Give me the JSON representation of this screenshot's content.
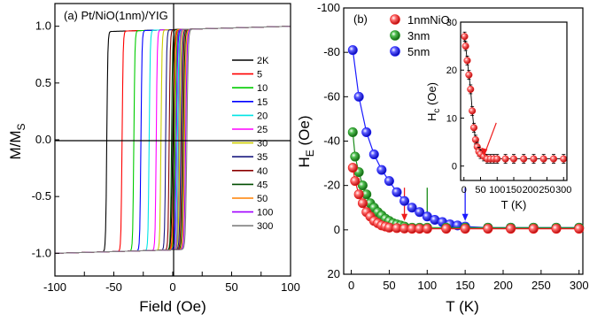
{
  "chart_data": [
    {
      "panel": "a",
      "type": "line",
      "title": "(a) Pt/NiO(1nm)/YIG",
      "xlabel": "Field (Oe)",
      "ylabel": "M/M",
      "ylabel_sub": "S",
      "xlim": [
        -100,
        100
      ],
      "ylim": [
        -1.2,
        1.2
      ],
      "xticks": [
        -100,
        -75,
        -50,
        -25,
        0,
        25,
        50,
        75,
        100
      ],
      "yticks": [
        -1.0,
        -0.5,
        0.0,
        0.5,
        1.0
      ],
      "ytick_labels": [
        "-1.0",
        "-0.5",
        "0.0",
        "0.5",
        "1.0"
      ],
      "series": [
        {
          "name": "2K",
          "color": "#000000",
          "hc_down": -56,
          "hc_up": 0
        },
        {
          "name": "5",
          "color": "#ff0000",
          "hc_down": -43,
          "hc_up": 1
        },
        {
          "name": "10",
          "color": "#00cc00",
          "hc_down": -33,
          "hc_up": 2
        },
        {
          "name": "15",
          "color": "#0000ff",
          "hc_down": -27,
          "hc_up": 3
        },
        {
          "name": "20",
          "color": "#00e5e5",
          "hc_down": -20,
          "hc_up": 4
        },
        {
          "name": "25",
          "color": "#ff00ff",
          "hc_down": -14,
          "hc_up": 5
        },
        {
          "name": "30",
          "color": "#cccc00",
          "hc_down": -10,
          "hc_up": 6
        },
        {
          "name": "35",
          "color": "#1a1a80",
          "hc_down": -6,
          "hc_up": 7
        },
        {
          "name": "40",
          "color": "#8b0000",
          "hc_down": -3,
          "hc_up": 8
        },
        {
          "name": "45",
          "color": "#004d00",
          "hc_down": -1,
          "hc_up": 9
        },
        {
          "name": "50",
          "color": "#ff8000",
          "hc_down": 1,
          "hc_up": 10
        },
        {
          "name": "100",
          "color": "#a000ff",
          "hc_down": 3,
          "hc_up": 11
        },
        {
          "name": "300",
          "color": "#808080",
          "hc_down": 5,
          "hc_up": 12
        }
      ]
    },
    {
      "panel": "b",
      "type": "scatter",
      "title": "(b)",
      "xlabel": "T (K)",
      "ylabel": "H",
      "ylabel_sub": "E",
      "ylabel_unit": " (Oe)",
      "xlim": [
        -10,
        305
      ],
      "ylim": [
        20,
        -100
      ],
      "xticks": [
        0,
        50,
        100,
        150,
        200,
        250,
        300
      ],
      "yticks": [
        -100,
        -80,
        -60,
        -40,
        -20,
        0,
        20
      ],
      "series": [
        {
          "name": "1nmNiO",
          "color": "#ee1c1c",
          "x": [
            2,
            5,
            10,
            15,
            20,
            25,
            30,
            35,
            40,
            45,
            50,
            60,
            70,
            80,
            90,
            100,
            125,
            150,
            180,
            210,
            240,
            270,
            300
          ],
          "y": [
            -28,
            -22,
            -16,
            -12,
            -8,
            -6,
            -4,
            -3,
            -2,
            -1.5,
            -1,
            -0.8,
            -0.6,
            -0.5,
            -0.5,
            -0.5,
            -0.5,
            -0.5,
            -0.5,
            -0.5,
            -0.5,
            -0.5,
            -0.5
          ]
        },
        {
          "name": "3nm",
          "color": "#1a8c1a",
          "x": [
            2,
            5,
            10,
            15,
            20,
            25,
            30,
            35,
            40,
            45,
            50,
            55,
            60,
            65,
            70,
            80,
            90,
            100,
            125,
            150,
            180,
            210,
            240,
            270,
            300
          ],
          "y": [
            -44,
            -33,
            -26,
            -20,
            -16,
            -12,
            -10,
            -8,
            -6.5,
            -5,
            -4,
            -3,
            -2.5,
            -2,
            -1.5,
            -1,
            -1,
            -1,
            -1,
            -1,
            -1,
            -1,
            -1,
            -1,
            -1
          ]
        },
        {
          "name": "5nm",
          "color": "#1a1aff",
          "x": [
            2,
            10,
            20,
            30,
            40,
            50,
            60,
            70,
            80,
            90,
            100,
            110,
            120,
            130,
            140,
            150,
            180,
            210,
            240,
            270,
            300
          ],
          "y": [
            -81,
            -60,
            -44,
            -34,
            -27,
            -22,
            -17,
            -13,
            -10,
            -8,
            -6,
            -4.5,
            -3.5,
            -2.5,
            -2,
            -1.5,
            -1,
            -1,
            -1,
            -1,
            -1
          ]
        }
      ],
      "arrows": [
        {
          "color": "#ee1c1c",
          "x": 70
        },
        {
          "color": "#1a8c1a",
          "x": 100
        },
        {
          "color": "#1a1aff",
          "x": 150
        }
      ]
    },
    {
      "panel": "b-inset",
      "type": "scatter",
      "xlabel": "T (K)",
      "ylabel": "H",
      "ylabel_sub": "c",
      "ylabel_unit": " (Oe)",
      "xlim": [
        -10,
        310
      ],
      "ylim": [
        -3,
        30
      ],
      "xticks": [
        0,
        50,
        100,
        150,
        200,
        250,
        300
      ],
      "yticks": [
        0,
        10,
        20,
        30
      ],
      "series": [
        {
          "name": "Hc",
          "color": "#ee1c1c",
          "x": [
            2,
            5,
            10,
            15,
            20,
            25,
            30,
            35,
            40,
            45,
            50,
            60,
            70,
            80,
            90,
            100,
            125,
            150,
            180,
            210,
            240,
            270,
            300
          ],
          "y": [
            27,
            25,
            22,
            19,
            16,
            11.5,
            8,
            5.5,
            4,
            3,
            2.5,
            2,
            1.5,
            1.5,
            1.5,
            1.5,
            1.5,
            1.5,
            1.5,
            1.5,
            1.5,
            1.5,
            1.5
          ]
        }
      ],
      "arrow": {
        "color": "#ee1c1c",
        "x": 60,
        "y": 2
      }
    }
  ]
}
